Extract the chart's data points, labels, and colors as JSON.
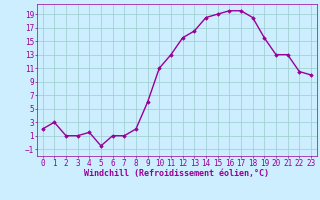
{
  "x": [
    0,
    1,
    2,
    3,
    4,
    5,
    6,
    7,
    8,
    9,
    10,
    11,
    12,
    13,
    14,
    15,
    16,
    17,
    18,
    19,
    20,
    21,
    22,
    23
  ],
  "y": [
    2,
    3,
    1,
    1,
    1.5,
    -0.5,
    1,
    1,
    2,
    6,
    11,
    13,
    15.5,
    16.5,
    18.5,
    19,
    19.5,
    19.5,
    18.5,
    15.5,
    13,
    13,
    10.5,
    10
  ],
  "line_color": "#990099",
  "marker": "D",
  "marker_size": 1.8,
  "bg_color": "#cceeff",
  "grid_color": "#99cccc",
  "xlabel": "Windchill (Refroidissement éolien,°C)",
  "xlabel_color": "#990099",
  "xlabel_fontsize": 6.0,
  "tick_color": "#990099",
  "tick_fontsize": 5.5,
  "ylim": [
    -2,
    20.5
  ],
  "xlim": [
    -0.5,
    23.5
  ],
  "yticks": [
    -1,
    1,
    3,
    5,
    7,
    9,
    11,
    13,
    15,
    17,
    19
  ],
  "xticks": [
    0,
    1,
    2,
    3,
    4,
    5,
    6,
    7,
    8,
    9,
    10,
    11,
    12,
    13,
    14,
    15,
    16,
    17,
    18,
    19,
    20,
    21,
    22,
    23
  ],
  "line_width": 1.0
}
